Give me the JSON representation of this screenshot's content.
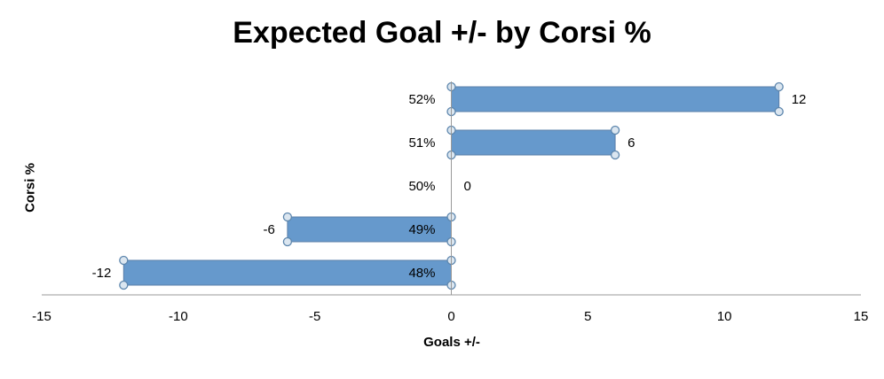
{
  "chart_data": {
    "type": "bar",
    "orientation": "horizontal",
    "title": "Expected Goal +/- by Corsi %",
    "xlabel": "Goals +/-",
    "ylabel": "Corsi %",
    "categories": [
      "52%",
      "51%",
      "50%",
      "49%",
      "48%"
    ],
    "values": [
      12,
      6,
      0,
      -6,
      -12
    ],
    "data_labels": [
      "12",
      "6",
      "0",
      "-6",
      "-12"
    ],
    "xlim": [
      -15,
      15
    ],
    "xticks": [
      -15,
      -10,
      -5,
      0,
      5,
      10,
      15
    ],
    "xtick_labels": [
      "-15",
      "-10",
      "-5",
      "0",
      "5",
      "10",
      "15"
    ],
    "grid": false,
    "legend": "none",
    "colors": {
      "bar": "#6699cc",
      "bar_stroke": "#5a7fa8",
      "axis": "#999999",
      "handle_fill": "#dbe6f0",
      "handle_stroke": "#5d86ad"
    }
  }
}
